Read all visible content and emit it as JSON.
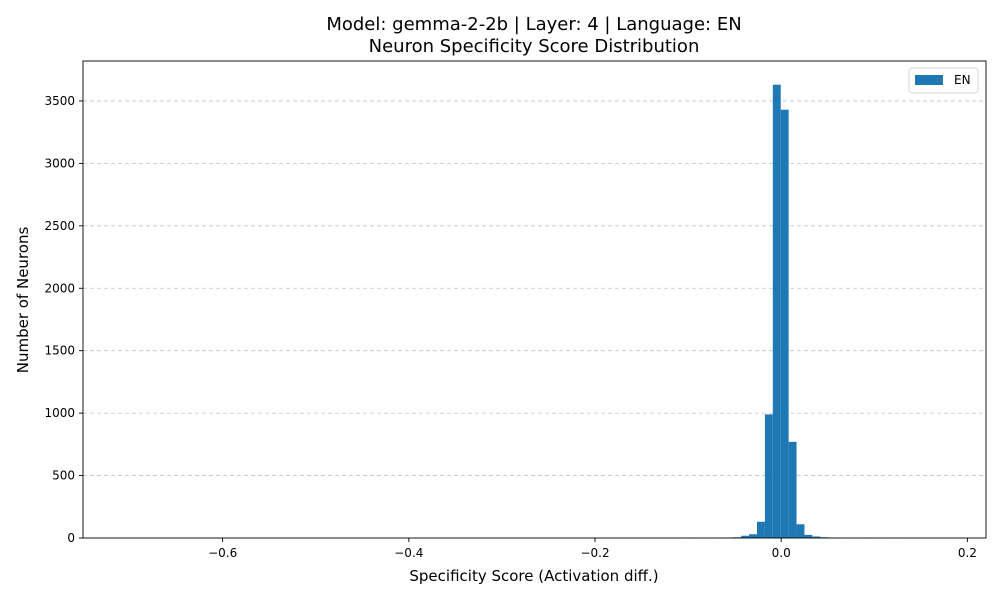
{
  "chart_data": {
    "type": "bar",
    "title_line1": "Model: gemma-2-2b | Layer: 4 | Language: EN",
    "title_line2": "Neuron Specificity Score Distribution",
    "xlabel": "Specificity Score (Activation diff.)",
    "ylabel": "Number of Neurons",
    "xlim": [
      -0.75,
      0.22
    ],
    "ylim": [
      0,
      3820
    ],
    "xticks": [
      -0.6,
      -0.4,
      -0.2,
      0.0,
      0.2
    ],
    "xtick_labels": [
      "−0.6",
      "−0.4",
      "−0.2",
      "0.0",
      "0.2"
    ],
    "yticks": [
      0,
      500,
      1000,
      1500,
      2000,
      2500,
      3000,
      3500
    ],
    "ytick_labels": [
      "0",
      "500",
      "1000",
      "1500",
      "2000",
      "2500",
      "3000",
      "3500"
    ],
    "grid": "y-dashed",
    "legend": {
      "position": "top-right",
      "entries": [
        "EN"
      ]
    },
    "color": "#1f77b4",
    "series": [
      {
        "name": "EN",
        "bin_width": 0.0085,
        "bins": [
          {
            "x": -0.1025,
            "y": 4
          },
          {
            "x": -0.0685,
            "y": 3
          },
          {
            "x": -0.06,
            "y": 4
          },
          {
            "x": -0.0515,
            "y": 6
          },
          {
            "x": -0.043,
            "y": 18
          },
          {
            "x": -0.0345,
            "y": 30
          },
          {
            "x": -0.026,
            "y": 130
          },
          {
            "x": -0.0175,
            "y": 990
          },
          {
            "x": -0.009,
            "y": 3630
          },
          {
            "x": -0.0005,
            "y": 3430
          },
          {
            "x": 0.008,
            "y": 770
          },
          {
            "x": 0.0165,
            "y": 110
          },
          {
            "x": 0.025,
            "y": 25
          },
          {
            "x": 0.0335,
            "y": 12
          },
          {
            "x": 0.042,
            "y": 6
          },
          {
            "x": 0.0505,
            "y": 4
          },
          {
            "x": 0.059,
            "y": 3
          },
          {
            "x": 0.09,
            "y": 3
          },
          {
            "x": 0.117,
            "y": 2
          }
        ]
      }
    ]
  }
}
